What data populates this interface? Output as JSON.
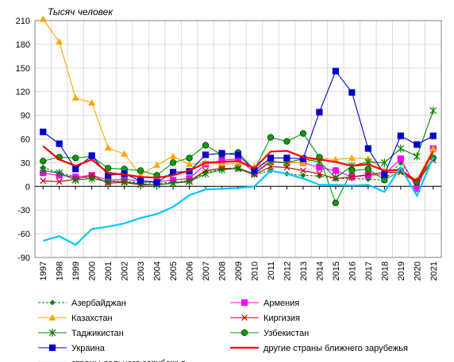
{
  "chart_data": {
    "type": "line",
    "title": "Тысяч человек",
    "xlabel": "",
    "ylabel": "",
    "ylim": [
      -90,
      210
    ],
    "yticks": [
      -90,
      -60,
      -30,
      0,
      30,
      60,
      90,
      120,
      150,
      180,
      210
    ],
    "grid": true,
    "legend_position": "bottom",
    "categories": [
      "1997",
      "1998",
      "1999",
      "2000",
      "2001",
      "2002",
      "2003",
      "2004",
      "2005",
      "2006",
      "2007",
      "2008",
      "2009",
      "2010",
      "2011",
      "2012",
      "2013",
      "2014",
      "2015",
      "2016",
      "2017",
      "2018",
      "2019",
      "2020",
      "2021"
    ],
    "series": [
      {
        "name": "Азербайджан",
        "color": "#008000",
        "dash": "3,2",
        "marker": "diamond",
        "values": [
          24,
          17,
          12,
          10,
          7,
          6,
          5,
          4,
          5,
          7,
          18,
          22,
          24,
          15,
          20,
          16,
          14,
          13,
          10,
          10,
          9,
          8,
          30,
          2,
          47
        ]
      },
      {
        "name": "Армения",
        "color": "#ff00ff",
        "dash": "",
        "marker": "square",
        "values": [
          17,
          14,
          12,
          14,
          8,
          9,
          7,
          6,
          8,
          10,
          28,
          33,
          35,
          18,
          32,
          30,
          30,
          24,
          20,
          12,
          14,
          15,
          35,
          -3,
          48
        ]
      },
      {
        "name": "Казахстан",
        "color": "#ffa500",
        "dash": "",
        "marker": "triangle",
        "values": [
          212,
          183,
          112,
          106,
          49,
          41,
          14,
          27,
          38,
          28,
          30,
          28,
          29,
          25,
          31,
          30,
          30,
          36,
          34,
          36,
          35,
          20,
          20,
          8,
          48
        ]
      },
      {
        "name": "Киргизия",
        "color": "#c00000",
        "dash": "",
        "marker": "x",
        "values": [
          7,
          6,
          9,
          14,
          4,
          5,
          2,
          2,
          4,
          7,
          20,
          23,
          22,
          15,
          25,
          24,
          20,
          16,
          10,
          12,
          15,
          18,
          18,
          5,
          33
        ]
      },
      {
        "name": "Таджикистан",
        "color": "#008000",
        "dash": "",
        "marker": "star",
        "values": [
          20,
          17,
          8,
          10,
          6,
          6,
          3,
          2,
          4,
          6,
          16,
          21,
          23,
          16,
          31,
          30,
          35,
          31,
          11,
          26,
          31,
          30,
          48,
          38,
          96
        ]
      },
      {
        "name": "Узбекистан",
        "color": "#00a000",
        "dash": "",
        "marker": "circle",
        "values": [
          32,
          37,
          36,
          38,
          23,
          22,
          20,
          14,
          30,
          36,
          52,
          40,
          43,
          21,
          62,
          57,
          67,
          37,
          -21,
          20,
          22,
          8,
          20,
          6,
          36
        ]
      },
      {
        "name": "Украина",
        "color": "#0000cc",
        "dash": "",
        "marker": "square",
        "values": [
          69,
          54,
          22,
          39,
          14,
          16,
          7,
          5,
          18,
          19,
          40,
          42,
          40,
          20,
          36,
          36,
          35,
          94,
          146,
          119,
          48,
          15,
          64,
          53,
          64
        ]
      },
      {
        "name": "другие страны ближнего зарубежья",
        "color": "#ff0000",
        "dash": "",
        "marker": "none",
        "width": 2.2,
        "values": [
          51,
          34,
          26,
          34,
          17,
          15,
          12,
          11,
          14,
          20,
          30,
          31,
          32,
          23,
          44,
          45,
          37,
          34,
          31,
          26,
          28,
          20,
          21,
          6,
          44
        ]
      },
      {
        "name": "страны дальнего зарубежья",
        "color": "#00c8ff",
        "dash": "",
        "marker": "none",
        "width": 2.2,
        "values": [
          -69,
          -63,
          -74,
          -54,
          -51,
          -47,
          -40,
          -35,
          -26,
          -11,
          -4,
          -3,
          -2,
          0,
          20,
          16,
          10,
          2,
          2,
          1,
          2,
          -7,
          24,
          -12,
          37
        ]
      }
    ]
  }
}
